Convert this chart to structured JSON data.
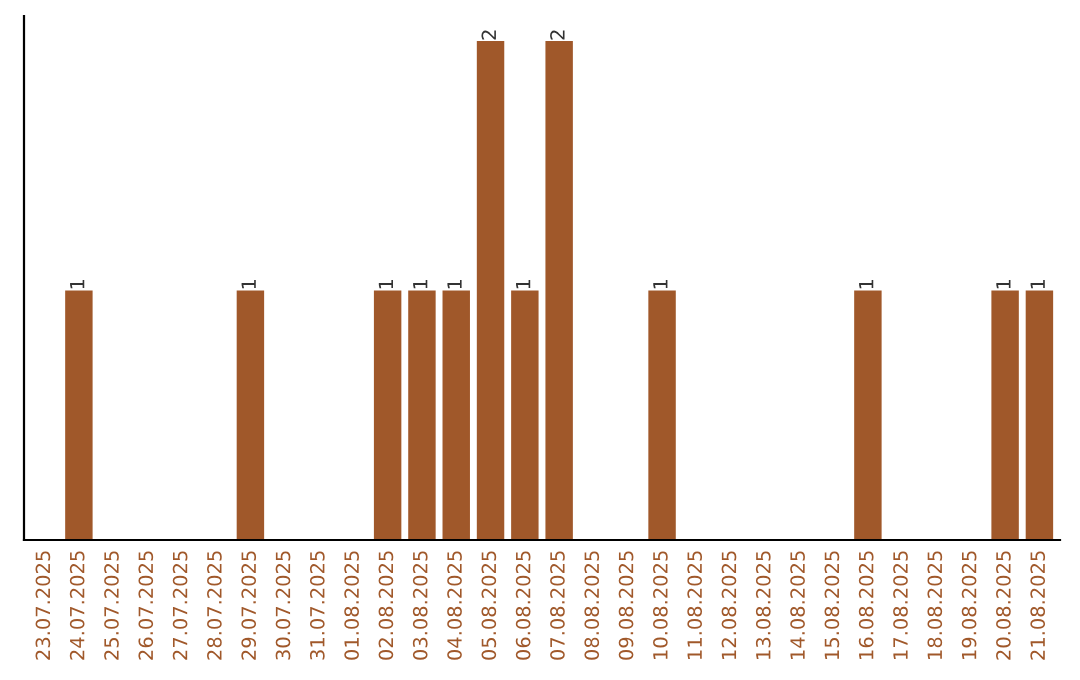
{
  "chart_data": {
    "type": "bar",
    "categories": [
      "23.07.2025",
      "24.07.2025",
      "25.07.2025",
      "26.07.2025",
      "27.07.2025",
      "28.07.2025",
      "29.07.2025",
      "30.07.2025",
      "31.07.2025",
      "01.08.2025",
      "02.08.2025",
      "03.08.2025",
      "04.08.2025",
      "05.08.2025",
      "06.08.2025",
      "07.08.2025",
      "08.08.2025",
      "09.08.2025",
      "10.08.2025",
      "11.08.2025",
      "12.08.2025",
      "13.08.2025",
      "14.08.2025",
      "15.08.2025",
      "16.08.2025",
      "17.08.2025",
      "18.08.2025",
      "19.08.2025",
      "20.08.2025",
      "21.08.2025"
    ],
    "values": [
      0,
      1,
      0,
      0,
      0,
      0,
      1,
      0,
      0,
      0,
      1,
      1,
      1,
      2,
      1,
      2,
      0,
      0,
      1,
      0,
      0,
      0,
      0,
      0,
      1,
      0,
      0,
      0,
      1,
      1
    ],
    "value_labels": [
      null,
      "1",
      null,
      null,
      null,
      null,
      "1",
      null,
      null,
      null,
      "1",
      "1",
      "1",
      "2",
      "1",
      "2",
      null,
      null,
      "1",
      null,
      null,
      null,
      null,
      null,
      "1",
      null,
      null,
      null,
      "1",
      "1"
    ],
    "color": "#a0582a",
    "grid": false,
    "legend": false
  }
}
